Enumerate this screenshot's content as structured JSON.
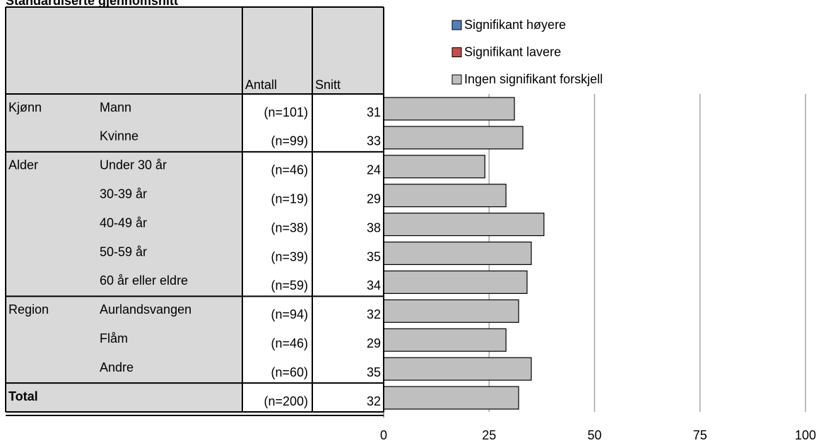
{
  "chart_data": {
    "type": "bar",
    "title": "Standardiserte gjennomsnitt",
    "columns": [
      "Antall",
      "Snitt"
    ],
    "groups": [
      "Kjønn",
      null,
      "Alder",
      null,
      null,
      null,
      null,
      "Region",
      null,
      null,
      "Total"
    ],
    "categories": [
      "Mann",
      "Kvinne",
      "Under 30 år",
      "30-39 år",
      "40-49 år",
      "50-59 år",
      "60 år eller eldre",
      "Aurlandsvangen",
      "Flåm",
      "Andre",
      null
    ],
    "counts": [
      "(n=101)",
      "(n=99)",
      "(n=46)",
      "(n=19)",
      "(n=38)",
      "(n=39)",
      "(n=59)",
      "(n=94)",
      "(n=46)",
      "(n=60)",
      "(n=200)"
    ],
    "values": [
      31,
      33,
      24,
      29,
      38,
      35,
      34,
      32,
      29,
      35,
      32
    ],
    "color": "#bfbfbf",
    "legend": [
      {
        "name": "Signifikant høyere",
        "color": "#4f81bd"
      },
      {
        "name": "Signifikant lavere",
        "color": "#c0504d"
      },
      {
        "name": "Ingen signifikant forskjell",
        "color": "#bfbfbf"
      }
    ],
    "xlim": [
      0,
      100
    ],
    "xticks": [
      0,
      25,
      50,
      75,
      100
    ],
    "grid": true
  }
}
